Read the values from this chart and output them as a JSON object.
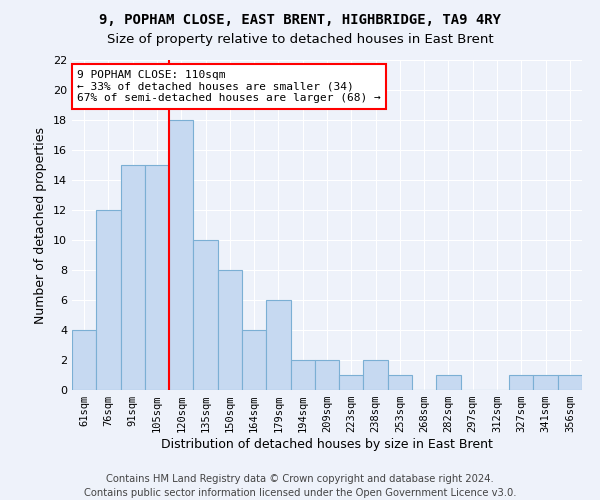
{
  "title": "9, POPHAM CLOSE, EAST BRENT, HIGHBRIDGE, TA9 4RY",
  "subtitle": "Size of property relative to detached houses in East Brent",
  "xlabel": "Distribution of detached houses by size in East Brent",
  "ylabel": "Number of detached properties",
  "bin_labels": [
    "61sqm",
    "76sqm",
    "91sqm",
    "105sqm",
    "120sqm",
    "135sqm",
    "150sqm",
    "164sqm",
    "179sqm",
    "194sqm",
    "209sqm",
    "223sqm",
    "238sqm",
    "253sqm",
    "268sqm",
    "282sqm",
    "297sqm",
    "312sqm",
    "327sqm",
    "341sqm",
    "356sqm"
  ],
  "bar_heights": [
    4,
    12,
    15,
    15,
    18,
    10,
    8,
    4,
    6,
    2,
    2,
    1,
    2,
    1,
    0,
    1,
    0,
    0,
    1,
    1,
    1
  ],
  "bar_color": "#c6d9f1",
  "bar_edge_color": "#7bafd4",
  "vline_x": 3.5,
  "vline_color": "red",
  "annotation_line1": "9 POPHAM CLOSE: 110sqm",
  "annotation_line2": "← 33% of detached houses are smaller (34)",
  "annotation_line3": "67% of semi-detached houses are larger (68) →",
  "annotation_box_color": "white",
  "annotation_box_edgecolor": "red",
  "ylim": [
    0,
    22
  ],
  "yticks": [
    0,
    2,
    4,
    6,
    8,
    10,
    12,
    14,
    16,
    18,
    20,
    22
  ],
  "footer": "Contains HM Land Registry data © Crown copyright and database right 2024.\nContains public sector information licensed under the Open Government Licence v3.0.",
  "bg_color": "#eef2fa",
  "grid_color": "#ffffff",
  "title_fontsize": 10,
  "subtitle_fontsize": 9.5,
  "xlabel_fontsize": 9,
  "ylabel_fontsize": 9,
  "annotation_fontsize": 8,
  "footer_fontsize": 7.2
}
